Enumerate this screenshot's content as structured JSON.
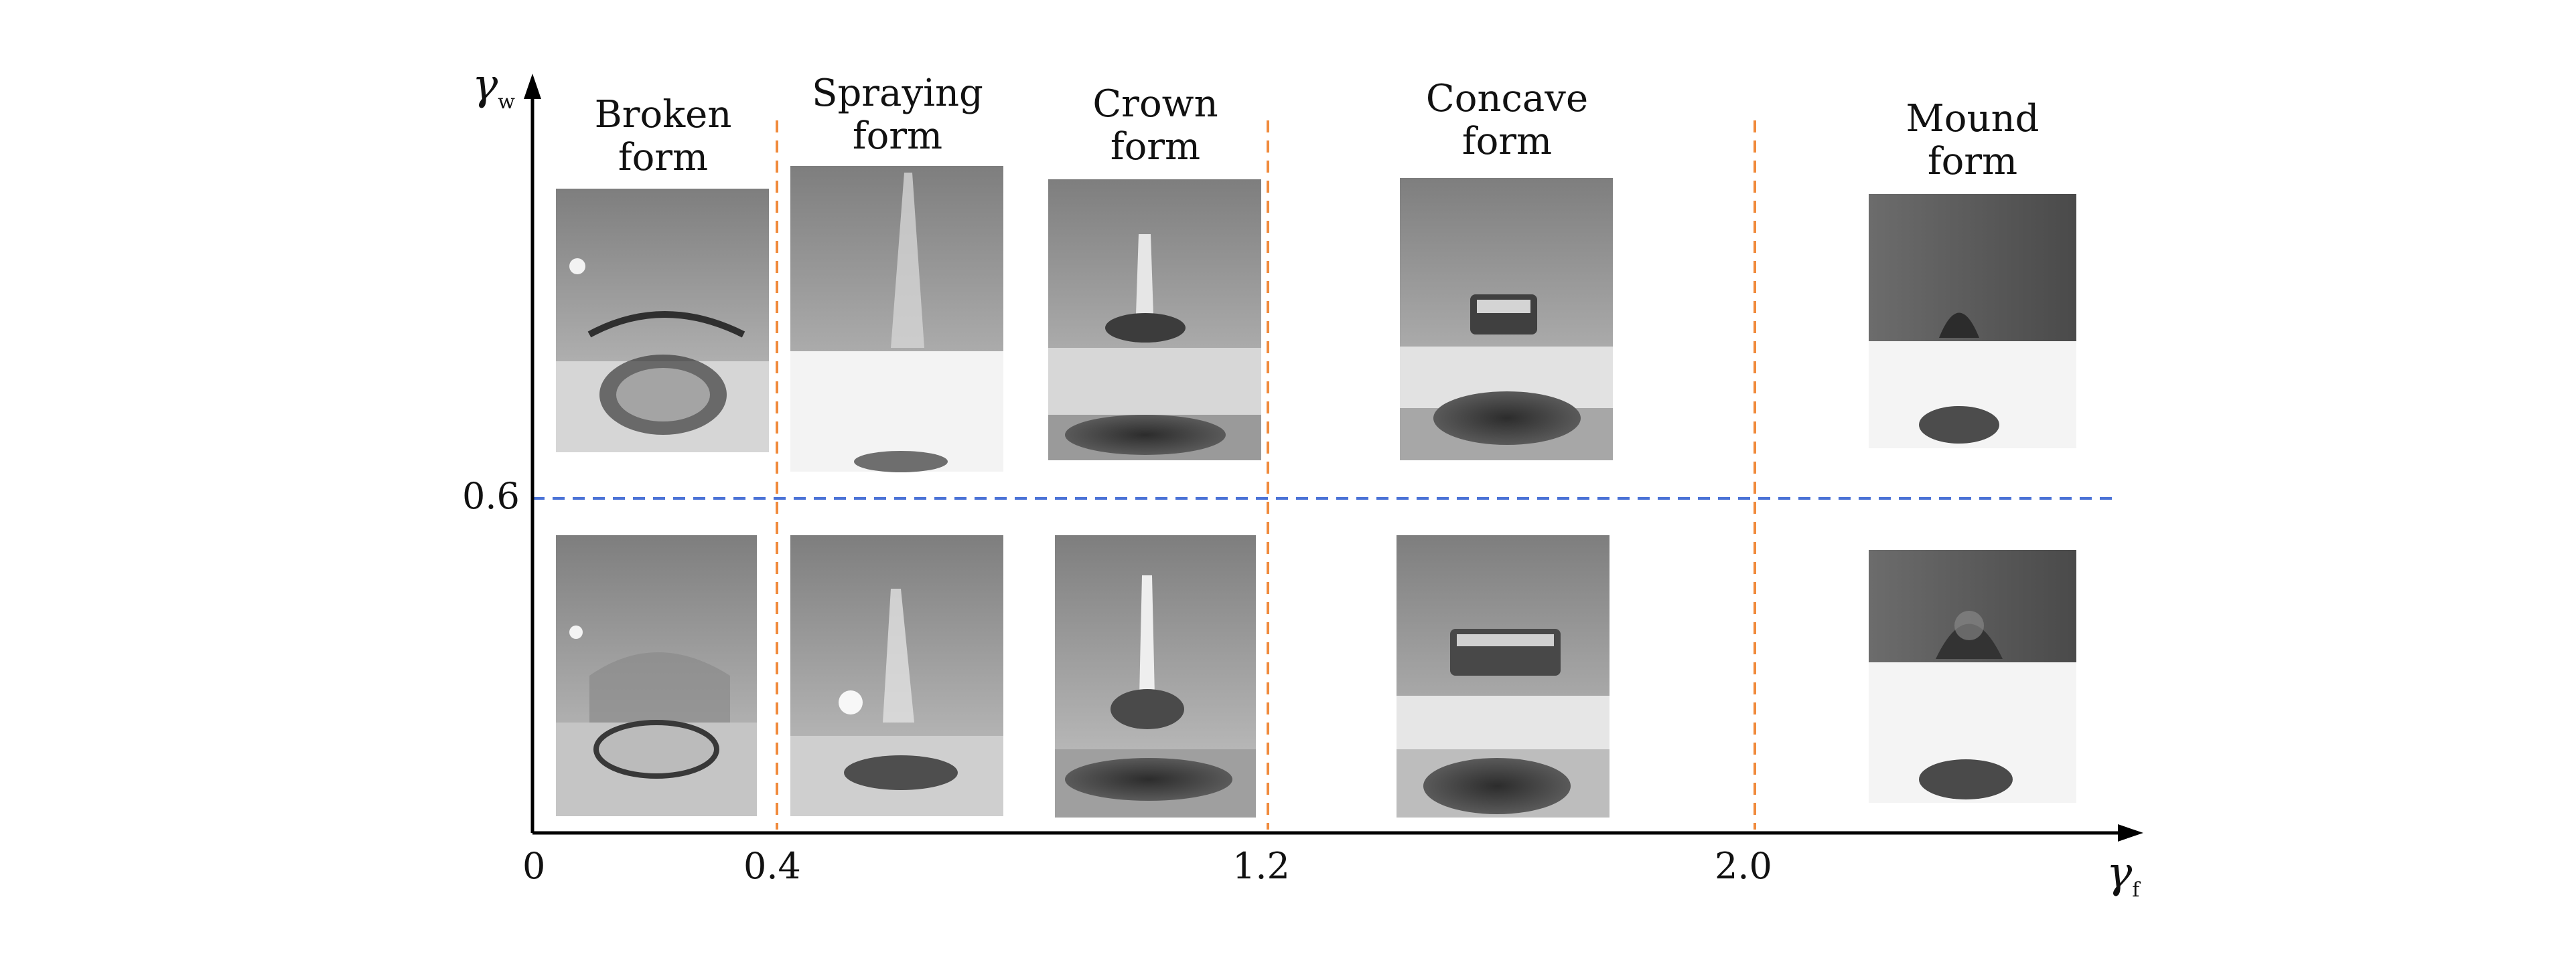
{
  "axes": {
    "y_symbol": "γ",
    "y_subscript": "w",
    "x_symbol": "γ",
    "x_subscript": "f",
    "x_ticks": [
      "0",
      "0.4",
      "1.2",
      "2.0"
    ],
    "y_ticks": [
      "0.6"
    ]
  },
  "regimes": [
    {
      "line1": "Broken",
      "line2": "form"
    },
    {
      "line1": "Spraying",
      "line2": "form"
    },
    {
      "line1": "Crown",
      "line2": "form"
    },
    {
      "line1": "Concave",
      "line2": "form"
    },
    {
      "line1": "Mound",
      "line2": "form"
    }
  ],
  "colors": {
    "axis": "#000000",
    "vertical_divider": "#f08a3c",
    "horizontal_divider": "#4a72d6",
    "photo_bg": "#9a9a9a"
  }
}
